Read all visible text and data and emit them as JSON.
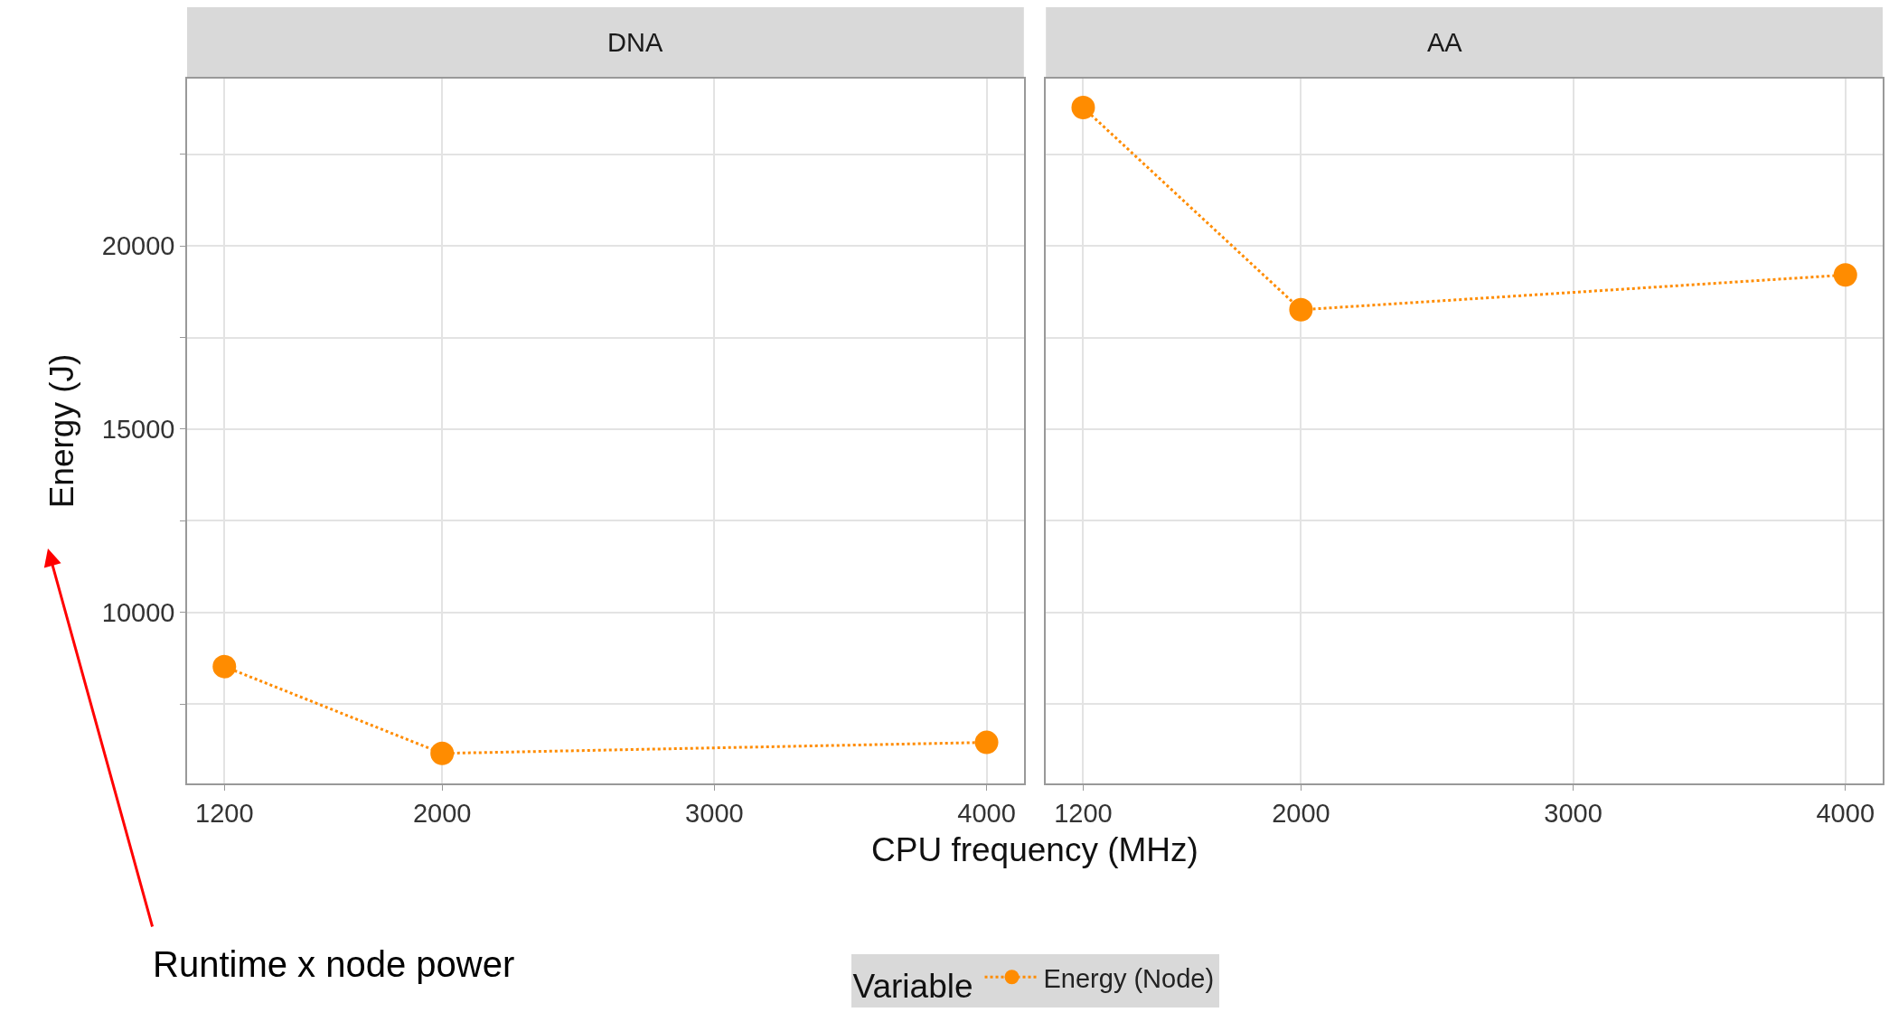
{
  "chart_data": [
    {
      "type": "line",
      "title": "DNA",
      "xlabel": "CPU frequency (MHz)",
      "ylabel": "Energy (J)",
      "legend_title": "Variable",
      "legend": "bottom",
      "marker": "circle",
      "line_style": "dotted",
      "grid": true,
      "x": [
        1200,
        2000,
        4000
      ],
      "series": [
        {
          "name": "Energy (Node)",
          "color": "#ff8c00",
          "values": [
            8520,
            6150,
            6450
          ]
        }
      ],
      "xlim": [
        1063,
        4137
      ],
      "xticks": [
        1200,
        2000,
        3000,
        4000
      ],
      "ylim": [
        5330,
        24570
      ],
      "yticks": [
        {
          "value": 7500,
          "label": null
        },
        10000,
        {
          "value": 12500,
          "label": null
        },
        15000,
        {
          "value": 17500,
          "label": null
        },
        20000,
        {
          "value": 22500,
          "label": null
        }
      ],
      "annotations": [
        "Runtime x node power"
      ]
    },
    {
      "type": "line",
      "title": "AA",
      "marker": "circle",
      "line_style": "dotted",
      "grid": true,
      "tick_labels": "x",
      "x": [
        1200,
        2000,
        4000
      ],
      "series": [
        {
          "name": "Energy (Node)",
          "color": "#ff8c00",
          "values": [
            23780,
            18260,
            19210
          ]
        }
      ],
      "xlim": [
        1063,
        4137
      ],
      "xticks": [
        1200,
        2000,
        3000,
        4000
      ],
      "ylim": [
        5330,
        24570
      ],
      "yticks": [
        {
          "value": 7500,
          "label": null
        },
        10000,
        {
          "value": 12500,
          "label": null
        },
        15000,
        {
          "value": 17500,
          "label": null
        },
        20000,
        {
          "value": 22500,
          "label": null
        }
      ]
    }
  ]
}
